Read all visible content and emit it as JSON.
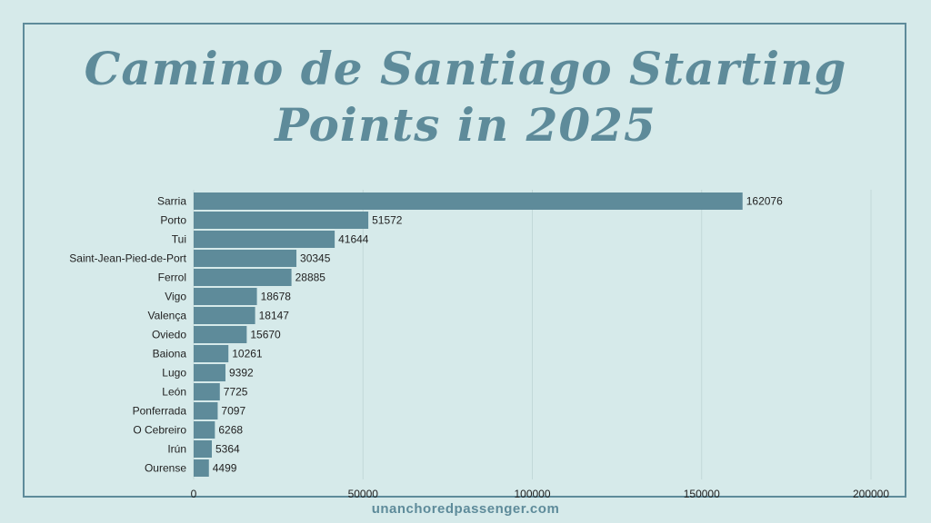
{
  "title_line1": "Camino de Santiago Starting",
  "title_line2": "Points in 2025",
  "footer": "unanchoredpassenger.com",
  "colors": {
    "bar": "#5e8b9a",
    "background": "#d6eaea",
    "title": "#5e8b9a",
    "text": "#222222",
    "grid": "#c2d8d8"
  },
  "chart_data": {
    "type": "bar",
    "orientation": "horizontal",
    "title": "Camino de Santiago Starting Points in 2025",
    "categories": [
      "Sarria",
      "Porto",
      "Tui",
      "Saint-Jean-Pied-de-Port",
      "Ferrol",
      "Vigo",
      "Valença",
      "Oviedo",
      "Baiona",
      "Lugo",
      "León",
      "Ponferrada",
      "O Cebreiro",
      "Irún",
      "Ourense"
    ],
    "values": [
      162076,
      51572,
      41644,
      30345,
      28885,
      18678,
      18147,
      15670,
      10261,
      9392,
      7725,
      7097,
      6268,
      5364,
      4499
    ],
    "xlim": [
      0,
      200000
    ],
    "xticks": [
      0,
      50000,
      100000,
      150000,
      200000
    ],
    "grid": true,
    "data_labels": true
  }
}
